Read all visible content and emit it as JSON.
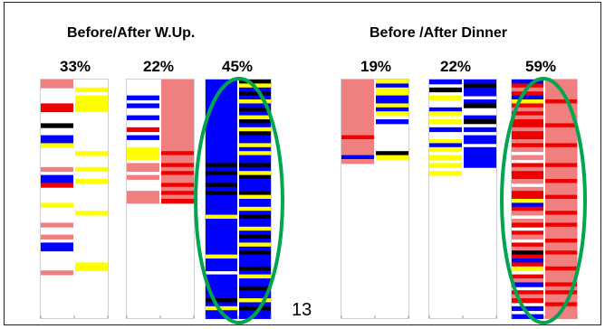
{
  "page_number": "13",
  "colors": {
    "pink": "#f08080",
    "red": "#ee0000",
    "yellow": "#ffff00",
    "blue": "#0000ff",
    "black": "#000000",
    "white": "#ffffff",
    "highlight": "#00a550",
    "empty_pink": "#f5f5f5"
  },
  "chart_data": {
    "type": "heatmap",
    "groups": [
      {
        "title": "Before/After W.Up.",
        "panels": [
          {
            "percent": "33%",
            "highlighted": false,
            "rows": 60,
            "columns": [
              [
                "pink",
                "pink",
                "white",
                "white",
                "white",
                "white",
                "red",
                "red",
                "white",
                "white",
                "white",
                "black",
                "white",
                "white",
                "blue",
                "blue",
                "yellow",
                "white",
                "white",
                "white",
                "white",
                "white",
                "pink",
                "white",
                "blue",
                "blue",
                "red",
                "white",
                "white",
                "white",
                "white",
                "yellow",
                "white",
                "white",
                "white",
                "white",
                "pink",
                "white",
                "white",
                "pink",
                "white",
                "blue",
                "blue",
                "white",
                "white",
                "white",
                "white",
                "white",
                "pink",
                "white",
                "white",
                "white",
                "white",
                "white",
                "white",
                "white",
                "white",
                "white",
                "white",
                "white"
              ],
              [
                "white",
                "white",
                "yellow",
                "white",
                "yellow",
                "yellow",
                "yellow",
                "yellow",
                "white",
                "white",
                "white",
                "white",
                "white",
                "white",
                "white",
                "white",
                "white",
                "white",
                "yellow",
                "white",
                "white",
                "white",
                "yellow",
                "white",
                "white",
                "yellow",
                "white",
                "white",
                "white",
                "white",
                "white",
                "white",
                "white",
                "yellow",
                "white",
                "white",
                "white",
                "white",
                "white",
                "white",
                "white",
                "white",
                "white",
                "white",
                "white",
                "white",
                "yellow",
                "yellow",
                "white",
                "white",
                "white",
                "white",
                "white",
                "white",
                "white",
                "white",
                "white",
                "white",
                "white",
                "white"
              ]
            ]
          },
          {
            "percent": "22%",
            "highlighted": false,
            "rows": 60,
            "columns": [
              [
                "white",
                "white",
                "white",
                "white",
                "blue",
                "white",
                "blue",
                "white",
                "white",
                "blue",
                "white",
                "white",
                "red",
                "white",
                "blue",
                "white",
                "white",
                "yellow",
                "yellow",
                "yellow",
                "white",
                "pink",
                "pink",
                "white",
                "pink",
                "white",
                "white",
                "white",
                "pink",
                "pink",
                "pink",
                "white",
                "white",
                "white",
                "white",
                "white",
                "white",
                "white",
                "white",
                "white",
                "white",
                "white",
                "white",
                "white",
                "white",
                "white",
                "white",
                "white",
                "white",
                "white",
                "white",
                "white",
                "white",
                "white",
                "white",
                "white",
                "white",
                "white",
                "white",
                "white"
              ],
              [
                "pink",
                "pink",
                "pink",
                "pink",
                "pink",
                "pink",
                "pink",
                "pink",
                "pink",
                "pink",
                "pink",
                "pink",
                "pink",
                "pink",
                "pink",
                "pink",
                "pink",
                "pink",
                "red",
                "pink",
                "pink",
                "red",
                "pink",
                "red",
                "pink",
                "pink",
                "red",
                "pink",
                "red",
                "pink",
                "red",
                "white",
                "white",
                "white",
                "white",
                "white",
                "white",
                "white",
                "white",
                "white",
                "white",
                "white",
                "white",
                "white",
                "white",
                "white",
                "white",
                "white",
                "white",
                "white",
                "white",
                "white",
                "white",
                "white",
                "white",
                "white",
                "white",
                "white",
                "white",
                "white"
              ]
            ]
          },
          {
            "percent": "45%",
            "highlighted": true,
            "rows": 60,
            "columns": [
              [
                "blue",
                "blue",
                "blue",
                "blue",
                "blue",
                "blue",
                "blue",
                "blue",
                "blue",
                "blue",
                "blue",
                "blue",
                "blue",
                "blue",
                "blue",
                "blue",
                "blue",
                "blue",
                "blue",
                "blue",
                "blue",
                "black",
                "blue",
                "black",
                "blue",
                "blue",
                "black",
                "blue",
                "black",
                "blue",
                "blue",
                "blue",
                "blue",
                "blue",
                "yellow",
                "blue",
                "blue",
                "blue",
                "blue",
                "blue",
                "blue",
                "blue",
                "blue",
                "blue",
                "yellow",
                "blue",
                "blue",
                "blue",
                "white",
                "blue",
                "blue",
                "blue",
                "blue",
                "blue",
                "blue",
                "black",
                "blue",
                "yellow",
                "blue",
                "blue"
              ],
              [
                "black",
                "yellow",
                "blue",
                "black",
                "blue",
                "yellow",
                "blue",
                "black",
                "blue",
                "yellow",
                "black",
                "blue",
                "yellow",
                "black",
                "blue",
                "blue",
                "yellow",
                "blue",
                "yellow",
                "blue",
                "blue",
                "black",
                "blue",
                "yellow",
                "black",
                "blue",
                "blue",
                "blue",
                "black",
                "yellow",
                "blue",
                "blue",
                "yellow",
                "blue",
                "black",
                "blue",
                "blue",
                "yellow",
                "blue",
                "black",
                "blue",
                "yellow",
                "blue",
                "black",
                "blue",
                "blue",
                "blue",
                "black",
                "blue",
                "yellow",
                "blue",
                "blue",
                "black",
                "blue",
                "blue",
                "yellow",
                "blue",
                "black",
                "blue",
                "blue"
              ]
            ]
          }
        ]
      },
      {
        "title": "Before /After Dinner",
        "panels": [
          {
            "percent": "19%",
            "highlighted": false,
            "rows": 60,
            "columns": [
              [
                "pink",
                "pink",
                "pink",
                "pink",
                "pink",
                "pink",
                "pink",
                "pink",
                "pink",
                "pink",
                "pink",
                "pink",
                "pink",
                "pink",
                "red",
                "pink",
                "pink",
                "pink",
                "pink",
                "blue",
                "pink",
                "white",
                "white",
                "white",
                "white",
                "white",
                "white",
                "white",
                "white",
                "white",
                "white",
                "white",
                "white",
                "white",
                "white",
                "white",
                "white",
                "white",
                "white",
                "white",
                "white",
                "white",
                "white",
                "white",
                "white",
                "white",
                "white",
                "white",
                "white",
                "white",
                "white",
                "white",
                "white",
                "white",
                "white",
                "white",
                "white",
                "white",
                "white",
                "white"
              ],
              [
                "yellow",
                "blue",
                "yellow",
                "yellow",
                "blue",
                "blue",
                "yellow",
                "blue",
                "yellow",
                "white",
                "blue",
                "white",
                "white",
                "white",
                "white",
                "white",
                "white",
                "white",
                "black",
                "yellow",
                "white",
                "white",
                "white",
                "white",
                "white",
                "white",
                "white",
                "white",
                "white",
                "white",
                "white",
                "white",
                "white",
                "white",
                "white",
                "white",
                "white",
                "white",
                "white",
                "white",
                "white",
                "white",
                "white",
                "white",
                "white",
                "white",
                "white",
                "white",
                "white",
                "white",
                "white",
                "white",
                "white",
                "white",
                "white",
                "white",
                "white",
                "white",
                "white",
                "white"
              ]
            ]
          },
          {
            "percent": "22%",
            "highlighted": false,
            "rows": 60,
            "columns": [
              [
                "blue",
                "white",
                "black",
                "white",
                "yellow",
                "white",
                "white",
                "blue",
                "yellow",
                "white",
                "yellow",
                "white",
                "blue",
                "white",
                "white",
                "yellow",
                "blue",
                "yellow",
                "white",
                "yellow",
                "white",
                "yellow",
                "white",
                "yellow",
                "white",
                "white",
                "white",
                "white",
                "white",
                "white",
                "white",
                "white",
                "white",
                "white",
                "white",
                "white",
                "white",
                "white",
                "white",
                "white",
                "white",
                "white",
                "white",
                "white",
                "white",
                "white",
                "white",
                "white",
                "white",
                "white",
                "white",
                "white",
                "white",
                "white",
                "white",
                "white",
                "white",
                "white",
                "white",
                "white"
              ],
              [
                "blue",
                "black",
                "blue",
                "blue",
                "white",
                "blue",
                "black",
                "white",
                "white",
                "blue",
                "black",
                "white",
                "blue",
                "white",
                "blue",
                "blue",
                "white",
                "blue",
                "blue",
                "blue",
                "blue",
                "blue",
                "white",
                "white",
                "white",
                "white",
                "white",
                "white",
                "white",
                "white",
                "white",
                "white",
                "white",
                "white",
                "white",
                "white",
                "white",
                "white",
                "white",
                "white",
                "white",
                "white",
                "white",
                "white",
                "white",
                "white",
                "white",
                "white",
                "white",
                "white",
                "white",
                "white",
                "white",
                "white",
                "white",
                "white",
                "white",
                "white",
                "white",
                "white"
              ]
            ]
          },
          {
            "percent": "59%",
            "highlighted": true,
            "rows": 60,
            "columns": [
              [
                "blue",
                "red",
                "pink",
                "red",
                "blue",
                "yellow",
                "red",
                "pink",
                "red",
                "pink",
                "red",
                "red",
                "pink",
                "red",
                "red",
                "pink",
                "red",
                "pink",
                "white",
                "pink",
                "white",
                "red",
                "pink",
                "red",
                "red",
                "pink",
                "white",
                "pink",
                "red",
                "red",
                "yellow",
                "blue",
                "red",
                "pink",
                "white",
                "pink",
                "red",
                "white",
                "red",
                "pink",
                "white",
                "red",
                "pink",
                "black",
                "red",
                "blue",
                "red",
                "yellow",
                "white",
                "red",
                "pink",
                "blue",
                "white",
                "red",
                "pink",
                "red",
                "white",
                "blue",
                "white",
                "blue"
              ],
              [
                "pink",
                "pink",
                "pink",
                "pink",
                "pink",
                "red",
                "pink",
                "pink",
                "pink",
                "pink",
                "pink",
                "red",
                "pink",
                "pink",
                "pink",
                "pink",
                "red",
                "pink",
                "pink",
                "pink",
                "pink",
                "red",
                "pink",
                "pink",
                "pink",
                "red",
                "pink",
                "pink",
                "pink",
                "red",
                "pink",
                "pink",
                "pink",
                "red",
                "pink",
                "pink",
                "red",
                "pink",
                "pink",
                "pink",
                "red",
                "pink",
                "pink",
                "red",
                "pink",
                "pink",
                "pink",
                "red",
                "pink",
                "pink",
                "pink",
                "red",
                "pink",
                "red",
                "pink",
                "pink",
                "red",
                "pink",
                "pink",
                "pink"
              ]
            ]
          }
        ]
      }
    ]
  }
}
